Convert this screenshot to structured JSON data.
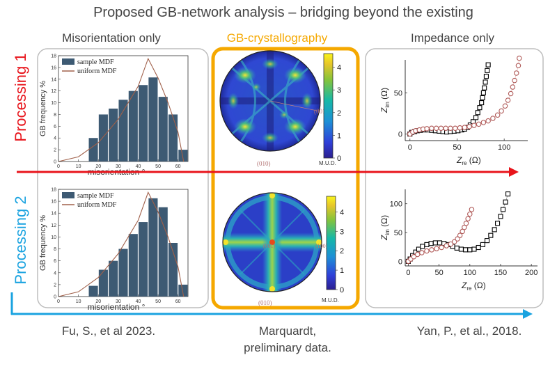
{
  "title": "Proposed GB-network analysis – bridging beyond the existing",
  "columns": {
    "left": "Misorientation only",
    "middle": "GB-crystallography",
    "right": "Impedance only"
  },
  "rows": {
    "top": "Processing 1",
    "bottom": "Processing 2"
  },
  "citations": {
    "left": "Fu, S., et al 2023.",
    "middle_line1": "Marquardt,",
    "middle_line2": "preliminary data.",
    "right": "Yan, P., et al., 2018."
  },
  "colors": {
    "processing1": "#e8141b",
    "processing2": "#1aa3e0",
    "gb_box": "#f5a800",
    "bar": "#3d5a73",
    "uniform_line": "#a0604a",
    "impedance_a": "#000000",
    "impedance_b": "#b05a58"
  },
  "chart_data": [
    {
      "type": "bar",
      "panel": "processing-1-misorientation",
      "categories": [
        15,
        20,
        25,
        30,
        35,
        40,
        45,
        50,
        55,
        60
      ],
      "series": [
        {
          "name": "sample MDF",
          "values": [
            4.0,
            8.0,
            9.0,
            10.5,
            12.0,
            13.0,
            14.3,
            11.0,
            8.0,
            2.0
          ]
        }
      ],
      "uniform_mdf": {
        "name": "uniform MDF",
        "x": [
          0,
          10,
          20,
          30,
          40,
          45,
          50,
          55,
          60,
          62.8
        ],
        "y": [
          0,
          0.8,
          3.2,
          7.2,
          12.8,
          17.5,
          14.2,
          10.0,
          5.0,
          0
        ]
      },
      "xlabel": "misorientation °",
      "ylabel": "GB frequency %",
      "xticks": [
        "0",
        "10",
        "20",
        "30",
        "40",
        "50",
        "60"
      ],
      "yticks": [
        "0",
        "2",
        "4",
        "6",
        "8",
        "10",
        "12",
        "14",
        "16",
        "18"
      ],
      "xlim": [
        0,
        65
      ],
      "ylim": [
        0,
        18
      ],
      "legend": "top-left"
    },
    {
      "type": "heatmap",
      "panel": "processing-1-gb-crystallography",
      "colorbar_ticks": [
        "0",
        "1",
        "2",
        "3",
        "4"
      ],
      "colorbar_label": "M.U.D.",
      "clim": [
        0,
        4.6
      ],
      "labels": [
        "(010)",
        "(001)"
      ]
    },
    {
      "type": "scatter",
      "panel": "processing-1-impedance",
      "xlabel_main": "Z",
      "xlabel_sub": "re",
      "xlabel_unit": "(Ω)",
      "ylabel_main": "Z",
      "ylabel_sub": "im",
      "ylabel_unit": "(Ω)",
      "xticks": [
        "0",
        "50",
        "100"
      ],
      "yticks": [
        "0",
        "50"
      ],
      "xlim": [
        -5,
        125
      ],
      "ylim": [
        -8,
        90
      ],
      "series": [
        {
          "marker": "square",
          "x": [
            0,
            2,
            5,
            8,
            11,
            15,
            19,
            23,
            27,
            31,
            35,
            39,
            43,
            47,
            51,
            55,
            58,
            61,
            64,
            67,
            70,
            72,
            74,
            76,
            77,
            78,
            79,
            80,
            81,
            82,
            83
          ],
          "y": [
            0,
            2,
            3,
            4,
            4.5,
            5,
            5,
            4.5,
            4,
            3.5,
            3,
            2.5,
            3,
            3.5,
            4,
            5,
            6,
            8,
            11,
            15,
            20,
            26,
            32,
            38,
            44,
            50,
            56,
            63,
            70,
            77,
            84
          ]
        },
        {
          "marker": "circle",
          "x": [
            0,
            3,
            6,
            10,
            14,
            18,
            23,
            28,
            33,
            38,
            43,
            48,
            53,
            58,
            63,
            68,
            73,
            78,
            83,
            88,
            93,
            97,
            101,
            104,
            107,
            109,
            111,
            113,
            115,
            116
          ],
          "y": [
            0,
            2.5,
            4,
            5,
            6,
            6.5,
            7,
            7,
            7,
            7,
            7,
            7,
            7.5,
            8,
            9,
            10.5,
            12,
            14,
            16,
            19,
            23,
            28,
            34,
            41,
            49,
            57,
            65,
            74,
            83,
            92
          ]
        }
      ]
    },
    {
      "type": "bar",
      "panel": "processing-2-misorientation",
      "categories": [
        15,
        20,
        25,
        30,
        35,
        40,
        45,
        50,
        55,
        60
      ],
      "series": [
        {
          "name": "sample MDF",
          "values": [
            1.8,
            4.5,
            6.0,
            8.0,
            10.5,
            12.5,
            16.5,
            15.0,
            9.0,
            2.0
          ]
        }
      ],
      "uniform_mdf": {
        "name": "uniform MDF",
        "x": [
          0,
          10,
          20,
          30,
          40,
          45,
          50,
          55,
          60,
          62.8
        ],
        "y": [
          0,
          0.8,
          3.2,
          7.2,
          12.8,
          17.5,
          14.2,
          10.0,
          5.0,
          0
        ]
      },
      "xlabel": "misorientation °",
      "ylabel": "GB frequency %",
      "xticks": [
        "0",
        "10",
        "20",
        "30",
        "40",
        "50",
        "60"
      ],
      "yticks": [
        "0",
        "2",
        "4",
        "6",
        "8",
        "10",
        "12",
        "14",
        "16",
        "18"
      ],
      "xlim": [
        0,
        65
      ],
      "ylim": [
        0,
        18
      ],
      "legend": "top-left"
    },
    {
      "type": "heatmap",
      "panel": "processing-2-gb-crystallography",
      "colorbar_ticks": [
        "0",
        "1",
        "2",
        "3",
        "4"
      ],
      "colorbar_label": "M.U.D.",
      "clim": [
        0,
        4.8
      ],
      "labels": [
        "(010)",
        "(001)",
        "(100)"
      ]
    },
    {
      "type": "scatter",
      "panel": "processing-2-impedance",
      "xlabel_main": "Z",
      "xlabel_sub": "re",
      "xlabel_unit": "(Ω)",
      "ylabel_main": "Z",
      "ylabel_sub": "im",
      "ylabel_unit": "(Ω)",
      "xticks": [
        "0",
        "50",
        "100",
        "150",
        "200"
      ],
      "yticks": [
        "0",
        "50",
        "100"
      ],
      "xlim": [
        -5,
        210
      ],
      "ylim": [
        -8,
        125
      ],
      "series": [
        {
          "marker": "square",
          "x": [
            0,
            3,
            7,
            12,
            17,
            23,
            30,
            37,
            44,
            51,
            58,
            65,
            72,
            79,
            86,
            93,
            100,
            107,
            114,
            121,
            128,
            134,
            140,
            145,
            150,
            154,
            158,
            162
          ],
          "y": [
            0,
            4,
            10,
            16,
            21,
            26,
            29,
            31,
            32,
            32,
            31,
            29,
            26,
            23,
            21,
            20,
            20,
            21,
            24,
            29,
            36,
            45,
            55,
            66,
            78,
            90,
            103,
            117
          ]
        },
        {
          "marker": "circle",
          "x": [
            0,
            4,
            9,
            15,
            22,
            30,
            38,
            46,
            54,
            62,
            69,
            75,
            80,
            84,
            88,
            91,
            94,
            97,
            100,
            103
          ],
          "y": [
            0,
            4,
            8,
            12,
            15,
            18,
            20,
            22,
            24,
            27,
            30,
            34,
            39,
            45,
            52,
            59,
            66,
            74,
            82,
            90
          ]
        }
      ]
    }
  ]
}
